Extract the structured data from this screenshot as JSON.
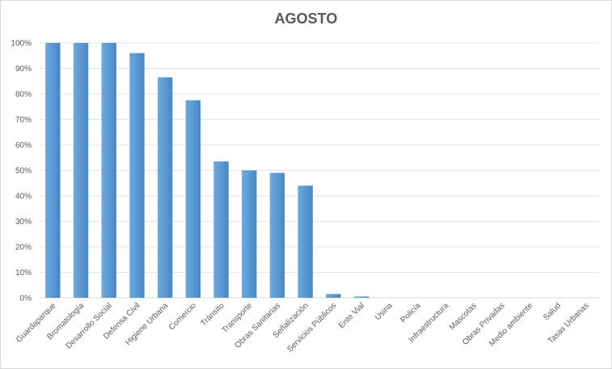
{
  "chart_data": {
    "type": "bar",
    "title": "AGOSTO",
    "xlabel": "",
    "ylabel": "",
    "ylim": [
      0,
      100
    ],
    "y_unit": "%",
    "y_ticks": [
      "0%",
      "10%",
      "20%",
      "30%",
      "40%",
      "50%",
      "60%",
      "70%",
      "80%",
      "90%",
      "100%"
    ],
    "grid": true,
    "legend": "none",
    "bar_color": "#5b9bd5",
    "categories": [
      "Guardaparque",
      "Bromatología",
      "Desarrollo Social",
      "Defensa Civil",
      "Higiene Urbana",
      "Comercio",
      "Tránsito",
      "Transporte",
      "Obras Sanitarias",
      "Señalización",
      "Servicios Públicos",
      "Ente Vial",
      "Usina",
      "Policía",
      "Infraestructura",
      "Mascotas",
      "Obras Privadas",
      "Medio ambiente",
      "Salud",
      "Tasas Urbanas"
    ],
    "values": [
      100,
      100,
      100,
      96,
      86.5,
      77.5,
      53.5,
      50,
      49,
      44,
      1.5,
      0.5,
      0,
      0,
      0,
      0,
      0,
      0,
      0,
      0
    ]
  }
}
